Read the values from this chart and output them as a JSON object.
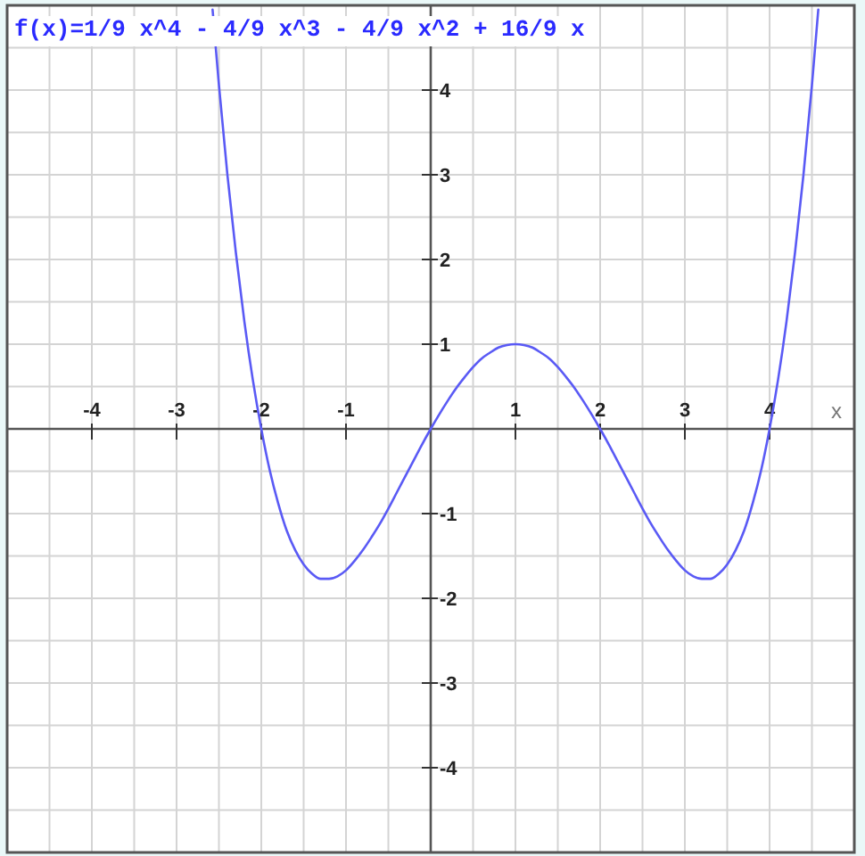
{
  "chart_data": {
    "type": "line",
    "title": "f(x)=1/9 x^4 - 4/9 x^3 - 4/9 x^2 + 16/9 x",
    "xlabel": "x",
    "x": [
      -2.575,
      -2.5,
      -2.4,
      -2.3,
      -2.2,
      -2.1,
      -2.0,
      -1.9,
      -1.8,
      -1.7,
      -1.6,
      -1.5,
      -1.4,
      -1.3,
      -1.2,
      -1.1,
      -1.0,
      -0.9,
      -0.8,
      -0.7,
      -0.6,
      -0.5,
      -0.4,
      -0.3,
      -0.2,
      -0.1,
      0,
      0.1,
      0.2,
      0.3,
      0.4,
      0.5,
      0.6,
      0.7,
      0.8,
      0.9,
      1.0,
      1.1,
      1.2,
      1.3,
      1.4,
      1.5,
      1.6,
      1.7,
      1.8,
      1.9,
      2.0,
      2.1,
      2.2,
      2.3,
      2.4,
      2.5,
      2.6,
      2.7,
      2.8,
      2.9,
      3.0,
      3.1,
      3.2,
      3.3,
      3.4,
      3.5,
      3.6,
      3.7,
      3.8,
      3.9,
      4.0,
      4.1,
      4.2,
      4.3,
      4.4,
      4.5,
      4.575
    ],
    "series": [
      {
        "color": "#5a5af5",
        "values": [
          4.95,
          4.06,
          3.0,
          2.08,
          1.27,
          0.58,
          0,
          -0.49,
          -0.88,
          -1.2,
          -1.43,
          -1.6,
          -1.71,
          -1.77,
          -1.77,
          -1.74,
          -1.67,
          -1.56,
          -1.43,
          -1.28,
          -1.12,
          -0.94,
          -0.75,
          -0.56,
          -0.37,
          -0.18,
          0,
          0.17,
          0.33,
          0.48,
          0.61,
          0.73,
          0.83,
          0.9,
          0.96,
          0.99,
          1,
          0.99,
          0.96,
          0.9,
          0.83,
          0.73,
          0.61,
          0.48,
          0.33,
          0.17,
          0,
          -0.18,
          -0.37,
          -0.56,
          -0.75,
          -0.94,
          -1.12,
          -1.28,
          -1.43,
          -1.56,
          -1.67,
          -1.74,
          -1.77,
          -1.77,
          -1.71,
          -1.6,
          -1.43,
          -1.2,
          -0.88,
          -0.49,
          0,
          0.58,
          1.27,
          2.08,
          3.0,
          4.06,
          4.95
        ]
      }
    ],
    "xlim": [
      -5,
      5
    ],
    "ylim": [
      -5,
      5
    ],
    "xticks": [
      {
        "value": -4.5,
        "label": null
      },
      -4,
      {
        "value": -3.5,
        "label": null
      },
      -3,
      {
        "value": -2.5,
        "label": null
      },
      -2,
      {
        "value": -1.5,
        "label": null
      },
      -1,
      {
        "value": -0.5,
        "label": null
      },
      {
        "value": 0,
        "label": null
      },
      {
        "value": 0.5,
        "label": null
      },
      1,
      {
        "value": 1.5,
        "label": null
      },
      2,
      {
        "value": 2.5,
        "label": null
      },
      3,
      {
        "value": 3.5,
        "label": null
      },
      4,
      {
        "value": 4.5,
        "label": null
      }
    ],
    "yticks": [
      {
        "value": -4.5,
        "label": null
      },
      -4,
      {
        "value": -3.5,
        "label": null
      },
      -3,
      {
        "value": -2.5,
        "label": null
      },
      -2,
      {
        "value": -1.5,
        "label": null
      },
      -1,
      {
        "value": -0.5,
        "label": null
      },
      {
        "value": 0,
        "label": null
      },
      {
        "value": 0.5,
        "label": null
      },
      1,
      {
        "value": 1.5,
        "label": null
      },
      2,
      {
        "value": 2.5,
        "label": null
      },
      3,
      {
        "value": 3.5,
        "label": null
      },
      4,
      {
        "value": 4.5,
        "label": null
      }
    ],
    "grid": true
  }
}
